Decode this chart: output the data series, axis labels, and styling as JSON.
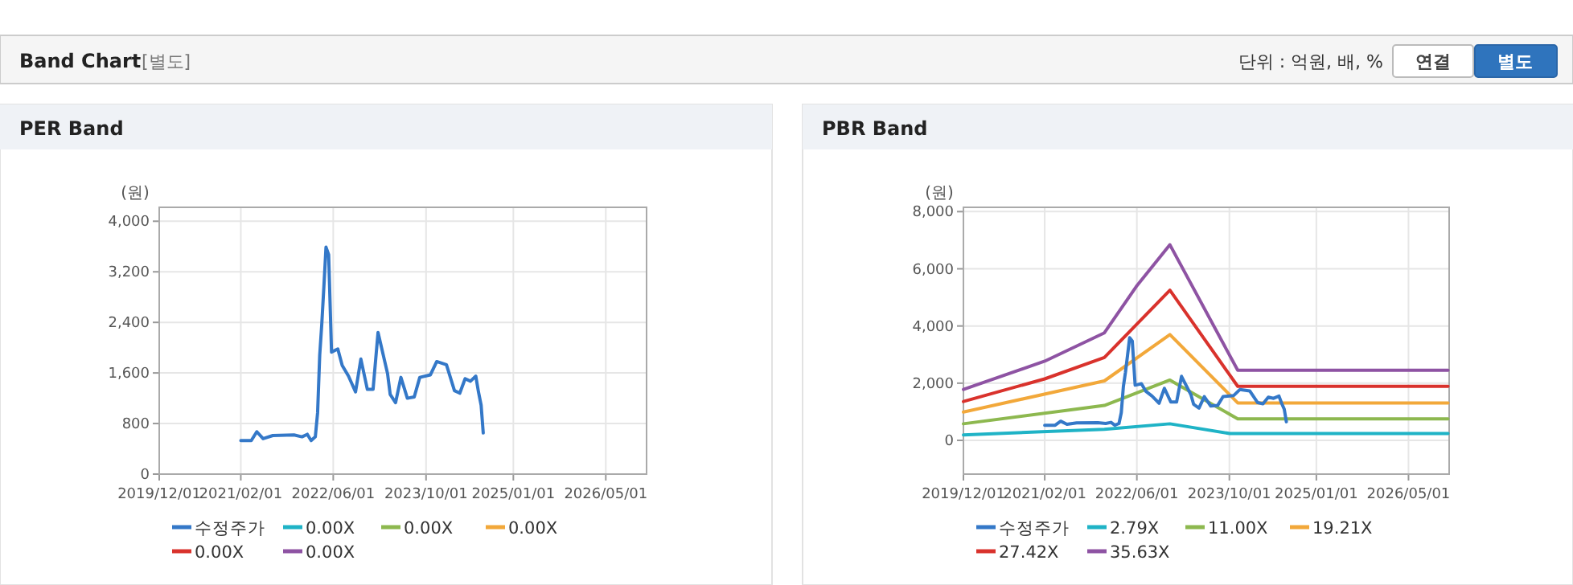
{
  "chart_data": [
    {
      "type": "other",
      "title": "Band Chart",
      "annotations": [
        "[별도]",
        "단위 : 억원, 배, %",
        "연결",
        "별도"
      ]
    },
    {
      "type": "line",
      "title": "PER Band",
      "ylabel": "(원)",
      "grid": true,
      "legend": "bottom",
      "marker": "none",
      "line_style": "solid",
      "xlim": [
        "2019-12-01",
        "2026-12-01"
      ],
      "xticks": [
        {
          "value": "2019-12-01",
          "label": "2019/12/01"
        },
        {
          "value": "2021-02-01",
          "label": "2021/02/01"
        },
        {
          "value": "2022-06-01",
          "label": "2022/06/01"
        },
        {
          "value": "2023-10-01",
          "label": "2023/10/01"
        },
        {
          "value": "2025-01-01",
          "label": "2025/01/01"
        },
        {
          "value": "2026-05-01",
          "label": "2026/05/01"
        }
      ],
      "ylim": [
        0,
        4220
      ],
      "yticks": [
        0,
        {
          "value": 800,
          "label": "800"
        },
        {
          "value": 1600,
          "label": "1,600"
        },
        {
          "value": 2400,
          "label": "2,400"
        },
        {
          "value": 3200,
          "label": "3,200"
        },
        {
          "value": 4000,
          "label": "4,000"
        }
      ],
      "series": [
        {
          "name": "수정주가",
          "color": "#3478c8",
          "x": [
            "2021-02-01",
            "2021-03-28",
            "2021-04-26",
            "2021-05-29",
            "2021-07-19",
            "2021-11-07",
            "2021-12-19",
            "2022-01-16",
            "2022-02-05",
            "2022-02-27",
            "2022-03-11",
            "2022-03-22",
            "2022-04-02",
            "2022-04-13",
            "2022-04-24",
            "2022-05-08",
            "2022-05-23",
            "2022-06-25",
            "2022-07-18",
            "2022-08-20",
            "2022-09-26",
            "2022-10-24",
            "2022-11-27",
            "2022-12-27",
            "2023-01-22",
            "2023-03-13",
            "2023-03-27",
            "2023-04-24",
            "2023-05-22",
            "2023-06-25",
            "2023-07-31",
            "2023-08-29",
            "2023-10-24",
            "2023-11-26",
            "2024-01-16",
            "2024-02-27",
            "2024-03-26",
            "2024-04-23",
            "2024-05-21",
            "2024-06-18",
            "2024-07-02",
            "2024-07-16",
            "2024-07-27"
          ],
          "values": [
            530,
            530,
            670,
            560,
            610,
            620,
            590,
            630,
            530,
            590,
            970,
            1880,
            2380,
            2970,
            3590,
            3470,
            1930,
            1980,
            1720,
            1550,
            1300,
            1820,
            1340,
            1340,
            2240,
            1590,
            1260,
            1130,
            1530,
            1200,
            1220,
            1530,
            1570,
            1780,
            1730,
            1320,
            1280,
            1510,
            1470,
            1550,
            1300,
            1090,
            650
          ]
        },
        {
          "name": "0.00X",
          "color": "#1fb3c6"
        },
        {
          "name": "0.00X",
          "color": "#8db84f"
        },
        {
          "name": "0.00X",
          "color": "#f2a83a"
        },
        {
          "name": "0.00X",
          "color": "#d9322c"
        },
        {
          "name": "0.00X",
          "color": "#8e53a3"
        }
      ]
    },
    {
      "type": "line",
      "title": "PBR Band",
      "ylabel": "(원)",
      "grid": true,
      "legend": "bottom",
      "marker": "none",
      "line_style": "solid",
      "xlim": [
        "2019-12-01",
        "2026-12-01"
      ],
      "xticks": [
        {
          "value": "2019-12-01",
          "label": "2019/12/01"
        },
        {
          "value": "2021-02-01",
          "label": "2021/02/01"
        },
        {
          "value": "2022-06-01",
          "label": "2022/06/01"
        },
        {
          "value": "2023-10-01",
          "label": "2023/10/01"
        },
        {
          "value": "2025-01-01",
          "label": "2025/01/01"
        },
        {
          "value": "2026-05-01",
          "label": "2026/05/01"
        }
      ],
      "ylim": [
        -1180,
        8150
      ],
      "yticks": [
        0,
        {
          "value": 2000,
          "label": "2,000"
        },
        {
          "value": 4000,
          "label": "4,000"
        },
        {
          "value": 6000,
          "label": "6,000"
        },
        {
          "value": 8000,
          "label": "8,000"
        }
      ],
      "series": [
        {
          "name": "수정주가",
          "color": "#3478c8",
          "x": [
            "2021-02-01",
            "2021-03-28",
            "2021-04-26",
            "2021-05-29",
            "2021-07-19",
            "2021-11-07",
            "2021-12-19",
            "2022-01-16",
            "2022-02-05",
            "2022-02-27",
            "2022-03-11",
            "2022-03-22",
            "2022-04-02",
            "2022-04-13",
            "2022-04-24",
            "2022-05-08",
            "2022-05-23",
            "2022-06-25",
            "2022-07-18",
            "2022-08-20",
            "2022-09-26",
            "2022-10-24",
            "2022-11-27",
            "2022-12-27",
            "2023-01-22",
            "2023-03-13",
            "2023-03-27",
            "2023-04-24",
            "2023-05-22",
            "2023-06-25",
            "2023-07-31",
            "2023-08-29",
            "2023-10-24",
            "2023-11-26",
            "2024-01-16",
            "2024-02-27",
            "2024-03-26",
            "2024-04-23",
            "2024-05-21",
            "2024-06-18",
            "2024-07-02",
            "2024-07-16",
            "2024-07-27"
          ],
          "values": [
            530,
            530,
            670,
            560,
            610,
            620,
            590,
            630,
            530,
            590,
            970,
            1880,
            2380,
            2970,
            3590,
            3470,
            1930,
            1980,
            1720,
            1550,
            1300,
            1820,
            1340,
            1340,
            2240,
            1590,
            1260,
            1130,
            1530,
            1200,
            1220,
            1530,
            1570,
            1780,
            1730,
            1320,
            1280,
            1510,
            1470,
            1550,
            1300,
            1090,
            650
          ]
        },
        {
          "name": "2.79X",
          "color": "#1fb3c6",
          "x": [
            "2019-12-01",
            "2021-12-12",
            "2022-11-22",
            "2023-10-03",
            "2026-11-25"
          ],
          "values": [
            190,
            390,
            580,
            240,
            240
          ]
        },
        {
          "name": "11.00X",
          "color": "#8db84f",
          "x": [
            "2019-12-01",
            "2021-12-12",
            "2022-11-22",
            "2023-11-14",
            "2026-11-25"
          ],
          "values": [
            580,
            1220,
            2110,
            750,
            750
          ]
        },
        {
          "name": "19.21X",
          "color": "#f2a83a",
          "x": [
            "2019-12-01",
            "2021-12-12",
            "2022-11-22",
            "2023-11-14",
            "2026-11-25"
          ],
          "values": [
            990,
            2080,
            3700,
            1310,
            1310
          ]
        },
        {
          "name": "27.42X",
          "color": "#d9322c",
          "x": [
            "2019-12-01",
            "2021-02-01",
            "2021-12-12",
            "2022-11-22",
            "2023-11-14",
            "2026-11-25"
          ],
          "values": [
            1360,
            2150,
            2900,
            5250,
            1890,
            1890
          ]
        },
        {
          "name": "35.63X",
          "color": "#8e53a3",
          "x": [
            "2019-12-01",
            "2021-02-01",
            "2021-12-12",
            "2022-05-29",
            "2022-11-22",
            "2023-11-14",
            "2026-11-25"
          ],
          "values": [
            1780,
            2770,
            3760,
            5380,
            6840,
            2450,
            2450
          ]
        }
      ]
    }
  ]
}
